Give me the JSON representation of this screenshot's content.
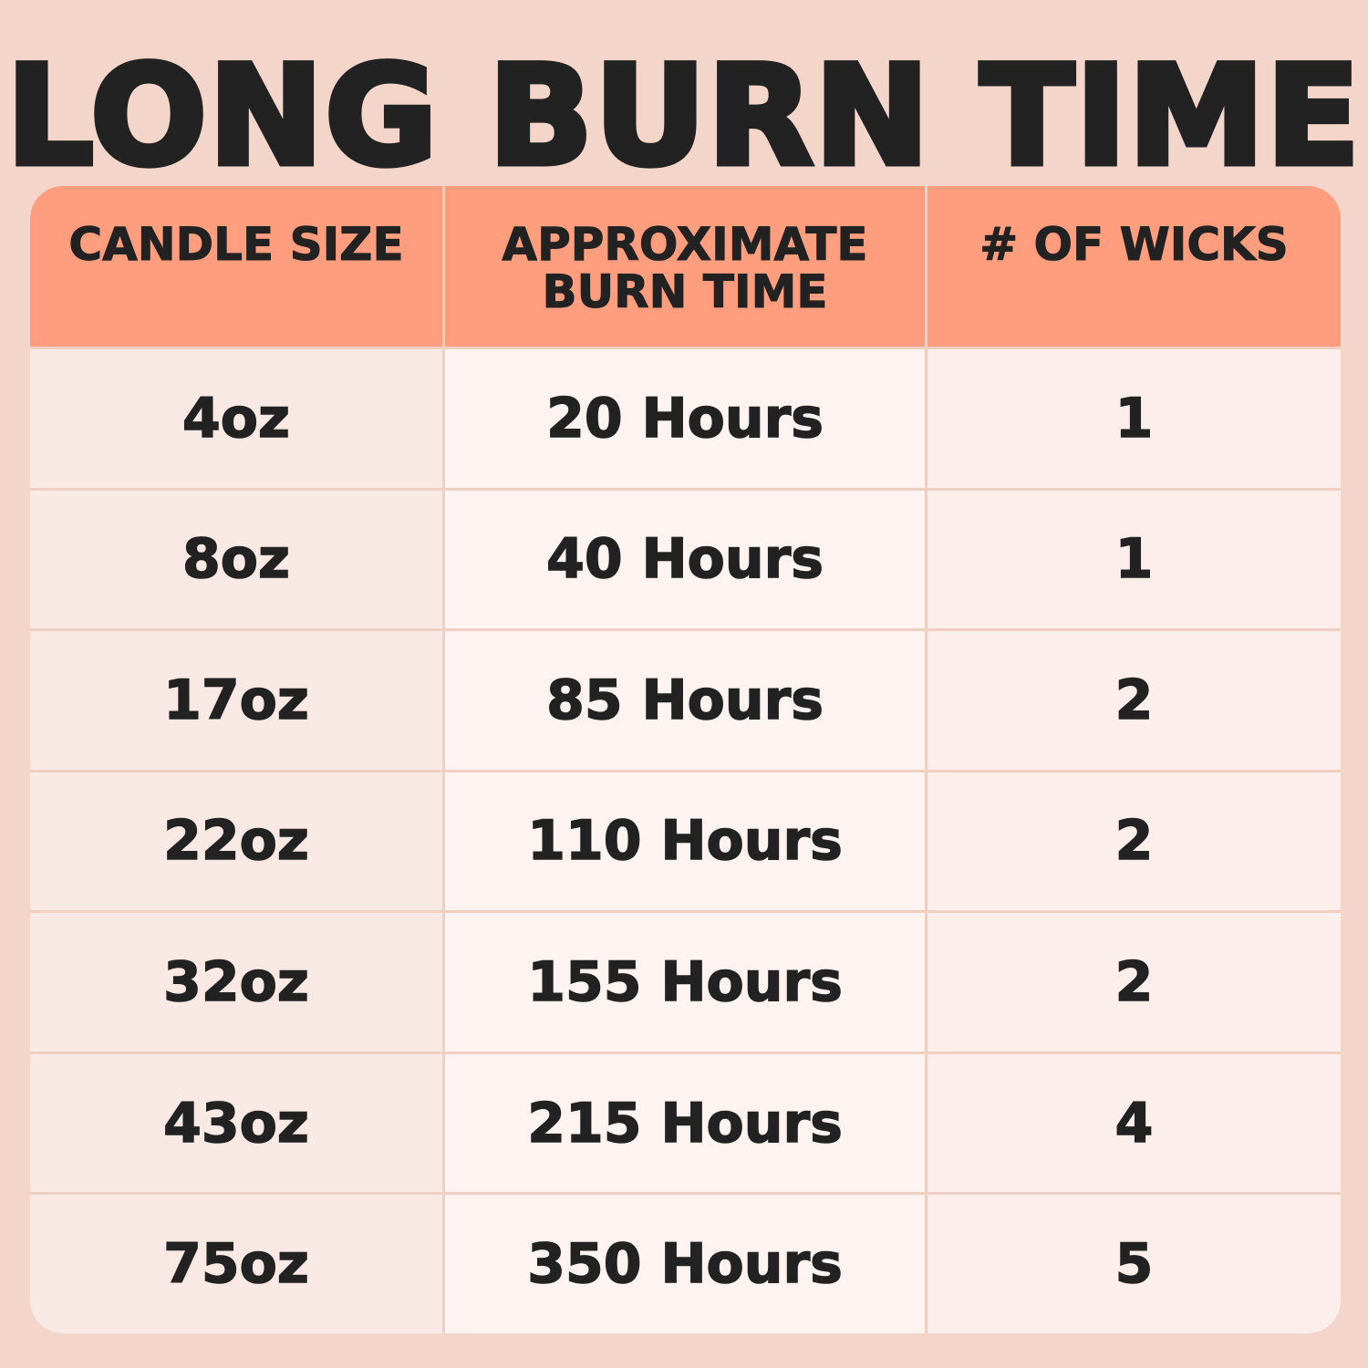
{
  "title": "LONG BURN TIME",
  "colors": {
    "background": "#f3d5ca",
    "header": "#fe9e7e",
    "text": "#222222"
  },
  "table": {
    "headers": [
      "CANDLE SIZE",
      "APPROXIMATE BURN TIME",
      "# OF WICKS"
    ],
    "rows": [
      [
        "4oz",
        "20 Hours",
        "1"
      ],
      [
        "8oz",
        "40 Hours",
        "1"
      ],
      [
        "17oz",
        "85 Hours",
        "2"
      ],
      [
        "22oz",
        "110 Hours",
        "2"
      ],
      [
        "32oz",
        "155 Hours",
        "2"
      ],
      [
        "43oz",
        "215 Hours",
        "4"
      ],
      [
        "75oz",
        "350 Hours",
        "5"
      ]
    ]
  }
}
